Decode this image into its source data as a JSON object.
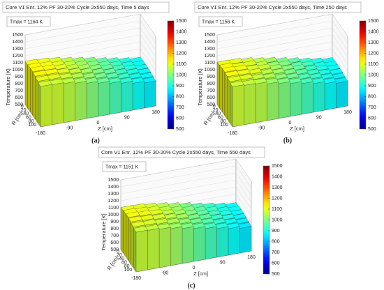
{
  "chart_data": [
    {
      "type": "bar3d",
      "title": "Core V1 Enr. 12% PF 30-20% Cycle 2x550 days, Time 5 days",
      "annotation": "Tmax = 1164 K",
      "caption": "(a)",
      "xlabel": "Z [cm]",
      "ylabel": "R [cm]",
      "zlabel": "Temperature [K]",
      "x": [
        -162,
        -126,
        -90,
        -54,
        -18,
        18,
        54,
        90,
        126,
        162
      ],
      "y": [
        0,
        20,
        40,
        60,
        80,
        100
      ],
      "values": [
        [
          1120,
          1110,
          1090,
          1060,
          1030,
          1000,
          965,
          935,
          905,
          880
        ],
        [
          1125,
          1115,
          1095,
          1065,
          1035,
          1005,
          970,
          940,
          905,
          885
        ],
        [
          1130,
          1120,
          1100,
          1070,
          1040,
          1005,
          975,
          940,
          910,
          885
        ],
        [
          1120,
          1115,
          1095,
          1065,
          1035,
          1000,
          970,
          935,
          905,
          880
        ],
        [
          1100,
          1095,
          1075,
          1050,
          1020,
          990,
          960,
          925,
          895,
          870
        ],
        [
          1080,
          1075,
          1060,
          1035,
          1005,
          975,
          945,
          915,
          885,
          860
        ]
      ],
      "xlim": [
        -180,
        180
      ],
      "xticks": [
        -180,
        -90,
        0,
        90,
        180
      ],
      "ylim": [
        -10,
        110
      ],
      "yticks": [
        0,
        20,
        40,
        60,
        80,
        100
      ],
      "zlim": [
        500,
        1500
      ],
      "zticks": [
        500,
        600,
        700,
        800,
        900,
        1000,
        1100,
        1200,
        1300,
        1400,
        1500
      ],
      "colormap": "jet",
      "clim": [
        500,
        1500
      ],
      "cticks": [
        500,
        600,
        700,
        800,
        900,
        1000,
        1100,
        1200,
        1300,
        1400,
        1500
      ]
    },
    {
      "type": "bar3d",
      "title": "Core V1 Enr. 12% PF 30-20% Cycle 2x550 days, Time 250 days",
      "annotation": "Tmax = 1156 K",
      "caption": "(b)",
      "xlabel": "Z [cm]",
      "ylabel": "R [cm]",
      "zlabel": "Temperature [K]",
      "x": [
        -162,
        -126,
        -90,
        -54,
        -18,
        18,
        54,
        90,
        126,
        162
      ],
      "y": [
        0,
        20,
        40,
        60,
        80,
        100
      ],
      "values": [
        [
          1110,
          1105,
          1085,
          1055,
          1030,
          995,
          965,
          930,
          900,
          875
        ],
        [
          1120,
          1100,
          1095,
          1060,
          1025,
          1005,
          960,
          940,
          900,
          880
        ],
        [
          1125,
          1115,
          1090,
          1070,
          1035,
          1000,
          970,
          935,
          905,
          880
        ],
        [
          1115,
          1105,
          1090,
          1055,
          1030,
          995,
          965,
          930,
          900,
          875
        ],
        [
          1095,
          1090,
          1065,
          1045,
          1010,
          985,
          950,
          925,
          890,
          865
        ],
        [
          1075,
          1065,
          1055,
          1025,
          1000,
          970,
          940,
          910,
          880,
          855
        ]
      ],
      "xlim": [
        -180,
        180
      ],
      "xticks": [
        -180,
        -90,
        0,
        90,
        180
      ],
      "ylim": [
        -10,
        110
      ],
      "yticks": [
        0,
        20,
        40,
        60,
        80,
        100
      ],
      "zlim": [
        500,
        1500
      ],
      "zticks": [
        500,
        600,
        700,
        800,
        900,
        1000,
        1100,
        1200,
        1300,
        1400,
        1500
      ],
      "colormap": "jet",
      "clim": [
        500,
        1500
      ],
      "cticks": [
        500,
        600,
        700,
        800,
        900,
        1000,
        1100,
        1200,
        1300,
        1400,
        1500
      ]
    },
    {
      "type": "bar3d",
      "title": "Core V1 Enr. 12% PF 30-20% Cycle 2x550 days, Time 550 days",
      "annotation": "Tmax = 1151 K",
      "caption": "(c)",
      "xlabel": "Z [cm]",
      "ylabel": "R [cm]",
      "zlabel": "Temperature [K]",
      "x": [
        -162,
        -126,
        -90,
        -54,
        -18,
        18,
        54,
        90,
        126,
        162
      ],
      "y": [
        0,
        20,
        40,
        60,
        80,
        100
      ],
      "values": [
        [
          1105,
          1100,
          1080,
          1055,
          1025,
          995,
          960,
          930,
          900,
          875
        ],
        [
          1115,
          1105,
          1090,
          1060,
          1030,
          1000,
          965,
          935,
          900,
          880
        ],
        [
          1120,
          1110,
          1095,
          1065,
          1035,
          1000,
          970,
          935,
          905,
          880
        ],
        [
          1110,
          1100,
          1085,
          1060,
          1030,
          995,
          965,
          930,
          900,
          875
        ],
        [
          1090,
          1085,
          1070,
          1045,
          1015,
          985,
          955,
          920,
          890,
          865
        ],
        [
          1070,
          1065,
          1050,
          1030,
          1000,
          970,
          940,
          910,
          880,
          855
        ]
      ],
      "xlim": [
        -180,
        180
      ],
      "xticks": [
        -180,
        -90,
        0,
        90,
        180
      ],
      "ylim": [
        -10,
        110
      ],
      "yticks": [
        0,
        20,
        40,
        60,
        80,
        100
      ],
      "zlim": [
        500,
        1500
      ],
      "zticks": [
        500,
        600,
        700,
        800,
        900,
        1000,
        1100,
        1200,
        1300,
        1400,
        1500
      ],
      "colormap": "jet",
      "clim": [
        500,
        1500
      ],
      "cticks": [
        500,
        600,
        700,
        800,
        900,
        1000,
        1100,
        1200,
        1300,
        1400,
        1500
      ]
    }
  ]
}
